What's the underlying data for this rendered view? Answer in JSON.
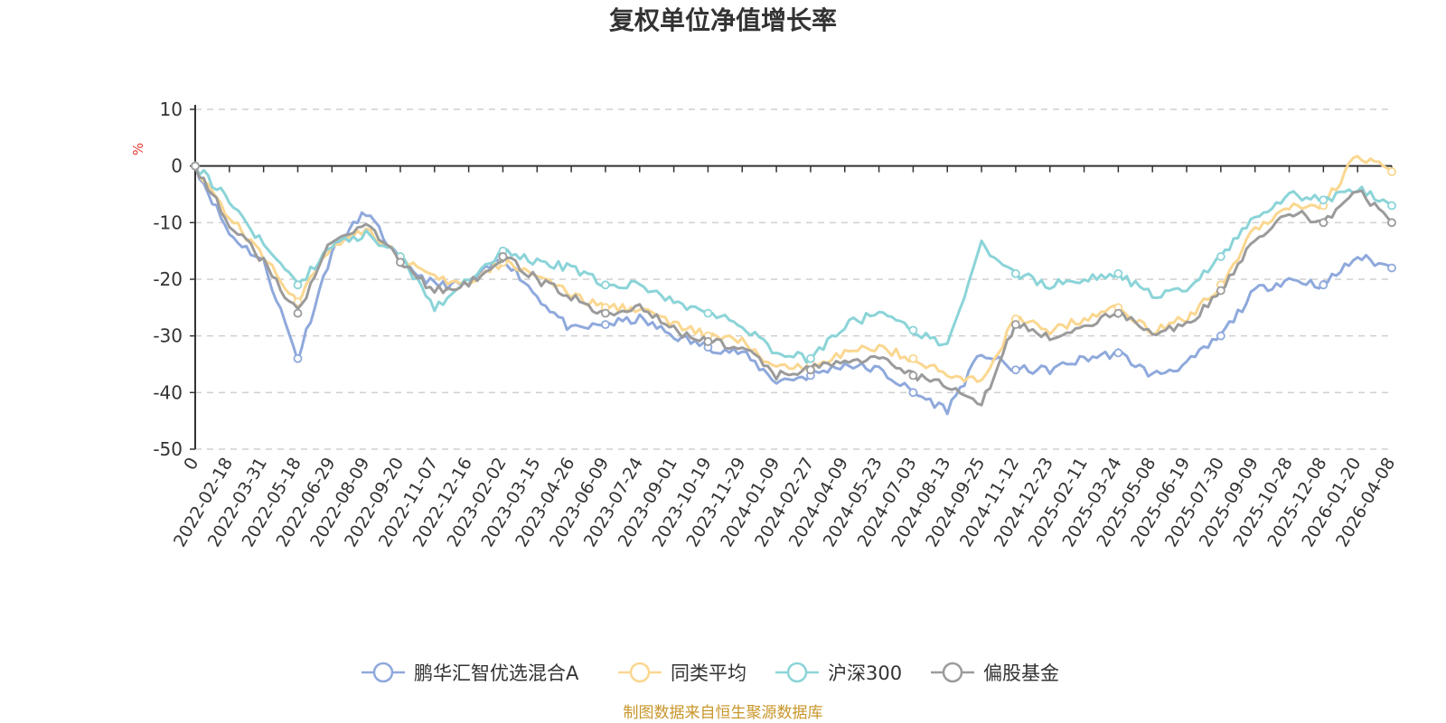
{
  "chart_data": {
    "type": "line",
    "title": "复权单位净值增长率",
    "ylabel": "%",
    "ylim": [
      -50,
      10
    ],
    "yticks": [
      10,
      0,
      -10,
      -20,
      -30,
      -40,
      -50
    ],
    "grid": true,
    "legend_position": "bottom",
    "categories": [
      "0",
      "2022-02-18",
      "2022-03-31",
      "2022-05-18",
      "2022-06-29",
      "2022-08-09",
      "2022-09-20",
      "2022-11-07",
      "2022-12-16",
      "2023-02-02",
      "2023-03-15",
      "2023-04-26",
      "2023-06-09",
      "2023-07-24",
      "2023-09-01",
      "2023-10-19",
      "2023-11-29",
      "2024-01-09",
      "2024-02-27",
      "2024-04-09",
      "2024-05-23",
      "2024-07-03",
      "2024-08-13",
      "2024-09-25",
      "2024-11-12",
      "2024-12-23",
      "2025-02-11",
      "2025-03-24",
      "2025-05-08",
      "2025-06-19",
      "2025-07-30",
      "2025-09-09",
      "2025-10-28",
      "2025-12-08",
      "2026-01-20",
      "2026-04-08"
    ],
    "series": [
      {
        "name": "鹏华汇智优选混合A",
        "color": "#8fa9dc",
        "values": [
          0,
          -12,
          -17,
          -34,
          -15,
          -8,
          -17,
          -21,
          -21,
          -16,
          -23,
          -29,
          -28,
          -27,
          -30,
          -32,
          -33,
          -38,
          -37,
          -35,
          -36,
          -40,
          -43,
          -33,
          -36,
          -36,
          -34,
          -33,
          -37,
          -35,
          -30,
          -22,
          -20,
          -21,
          -16,
          -18
        ]
      },
      {
        "name": "同类平均",
        "color": "#fad790",
        "values": [
          0,
          -9,
          -16,
          -24,
          -14,
          -11,
          -16,
          -20,
          -21,
          -17,
          -19,
          -23,
          -25,
          -25,
          -28,
          -30,
          -31,
          -36,
          -35,
          -33,
          -32,
          -34,
          -37,
          -38,
          -27,
          -29,
          -27,
          -25,
          -29,
          -27,
          -21,
          -11,
          -7,
          -7,
          2,
          -1
        ]
      },
      {
        "name": "沪深300",
        "color": "#8bd4d8",
        "values": [
          0,
          -6,
          -14,
          -21,
          -14,
          -12,
          -16,
          -25,
          -20,
          -15,
          -17,
          -18,
          -21,
          -21,
          -24,
          -26,
          -28,
          -33,
          -34,
          -28,
          -26,
          -29,
          -32,
          -14,
          -19,
          -21,
          -20,
          -19,
          -23,
          -22,
          -16,
          -9,
          -5,
          -6,
          -4,
          -7
        ]
      },
      {
        "name": "偏股基金",
        "color": "#9b9b9b",
        "values": [
          0,
          -10,
          -17,
          -26,
          -13,
          -10,
          -17,
          -22,
          -21,
          -16,
          -20,
          -23,
          -26,
          -25,
          -29,
          -31,
          -32,
          -37,
          -36,
          -34,
          -34,
          -37,
          -39,
          -42,
          -28,
          -30,
          -28,
          -26,
          -30,
          -28,
          -22,
          -13,
          -8,
          -10,
          -4,
          -10
        ]
      }
    ]
  },
  "source_text": "制图数据来自恒生聚源数据库"
}
